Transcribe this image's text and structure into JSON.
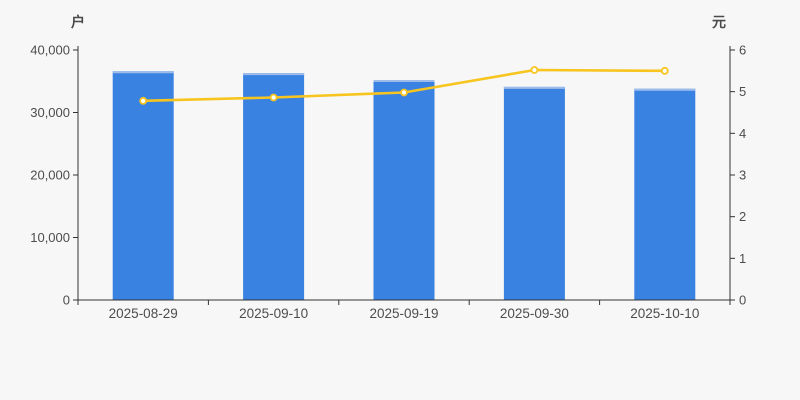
{
  "chart_data": {
    "type": "bar+line",
    "title": "",
    "categories": [
      "2025-08-29",
      "2025-09-10",
      "2025-09-19",
      "2025-09-30",
      "2025-10-10"
    ],
    "bar_series": {
      "axis": "left",
      "unit": "户",
      "values": [
        36600,
        36300,
        35200,
        34100,
        33800
      ],
      "color": "#3a82e2",
      "top_edge_color": "#9fbce9"
    },
    "line_series": {
      "axis": "right",
      "unit": "元",
      "values": [
        4.78,
        4.86,
        4.98,
        5.52,
        5.5
      ],
      "color": "#f7c51e",
      "marker_fill": "#ffffff"
    },
    "left_axis": {
      "title": "户",
      "min": 0,
      "max": 40000,
      "tick_step": 10000,
      "tick_labels": [
        "0",
        "10,000",
        "20,000",
        "30,000",
        "40,000"
      ]
    },
    "right_axis": {
      "title": "元",
      "min": 0,
      "max": 6,
      "tick_step": 1,
      "tick_labels": [
        "0",
        "1",
        "2",
        "3",
        "4",
        "5",
        "6"
      ]
    },
    "grid": false,
    "legend_position": "none",
    "axis_color": "#333333",
    "label_color": "#4d4d4d",
    "background": "#f7f7f7"
  }
}
